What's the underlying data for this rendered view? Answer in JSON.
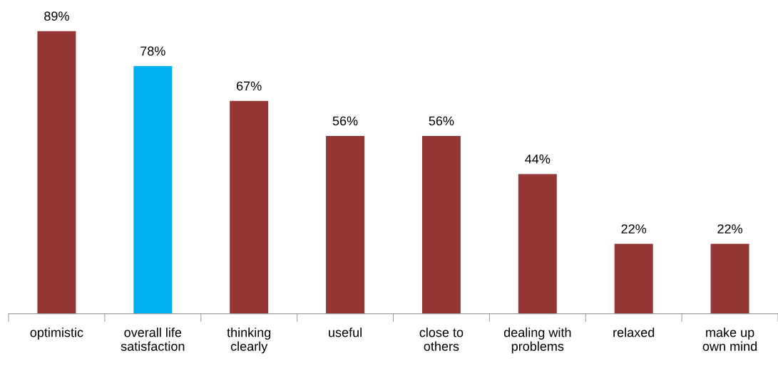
{
  "chart_data": {
    "type": "bar",
    "categories": [
      "optimistic",
      "overall life\nsatisfaction",
      "thinking\nclearly",
      "useful",
      "close to\nothers",
      "dealing with\nproblems",
      "relaxed",
      "make up\nown mind"
    ],
    "values": [
      89,
      78,
      67,
      56,
      56,
      44,
      22,
      22
    ],
    "colors": [
      "#943634",
      "#00b0f0",
      "#943634",
      "#943634",
      "#943634",
      "#943634",
      "#943634",
      "#943634"
    ],
    "value_labels": [
      "89%",
      "78%",
      "67%",
      "56%",
      "56%",
      "44%",
      "22%",
      "22%"
    ],
    "grid": false,
    "legend": false
  }
}
